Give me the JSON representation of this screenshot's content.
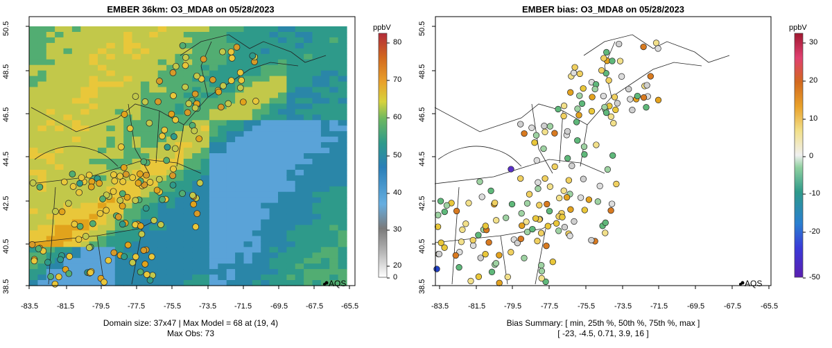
{
  "left": {
    "title": "EMBER 36km: O3_MDA8 on 05/28/2023",
    "unit": "ppbV",
    "footer_line1": "Domain size: 37x47 | Max Model = 68 at (19, 4)",
    "footer_line2": "Max Obs: 73",
    "legend_label": "AQS",
    "colorbar_ticks": [
      "80",
      "70",
      "60",
      "50",
      "40",
      "30",
      "20",
      "0"
    ]
  },
  "right": {
    "title": "EMBER bias: O3_MDA8 on 05/28/2023",
    "unit": "ppbV",
    "footer_line1": "Bias Summary: [ min, 25th %, 50th %, 75th %, max ]",
    "footer_line2": "[ -23,   -4.5,   0.71,   3.9,   16 ]",
    "legend_label": "AQS",
    "colorbar_ticks": [
      "30",
      "20",
      "10",
      "0",
      "-10",
      "-20",
      "-50"
    ]
  },
  "x_ticks": [
    "-83.5",
    "-81.5",
    "-79.5",
    "-77.5",
    "-75.5",
    "-73.5",
    "-71.5",
    "-69.5",
    "-67.5",
    "-65.5"
  ],
  "y_ticks": [
    "50.5",
    "48.5",
    "46.5",
    "44.5",
    "42.5",
    "40.5",
    "38.5"
  ],
  "bias_summary": {
    "min": -23,
    "p25": -4.5,
    "p50": 0.71,
    "p75": 3.9,
    "max": 16
  },
  "max_model": 68,
  "max_obs": 73
}
